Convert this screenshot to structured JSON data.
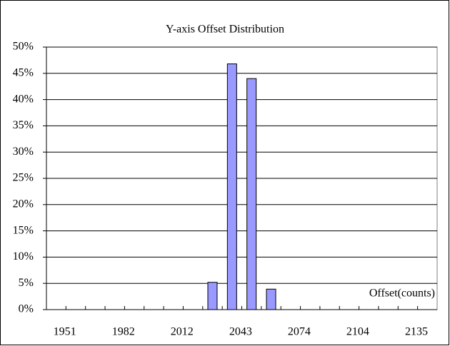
{
  "chart_data": {
    "type": "bar",
    "title": "Y-axis Offset Distribution",
    "x_label": "Offset(counts)",
    "categories": [
      "1951",
      null,
      null,
      "1982",
      null,
      null,
      "2012",
      null,
      null,
      "2043",
      null,
      null,
      "2074",
      null,
      null,
      "2104",
      null,
      null,
      "2135",
      null
    ],
    "values": [
      0,
      0,
      0,
      0,
      0,
      0,
      0,
      0,
      5.2,
      46.8,
      44,
      3.9,
      0,
      0,
      0,
      0,
      0,
      0,
      0,
      0
    ],
    "color": "#9999ff",
    "ylim": [
      0,
      50
    ],
    "yticks": [
      {
        "value": 0,
        "label": "0%"
      },
      {
        "value": 5,
        "label": "5%"
      },
      {
        "value": 10,
        "label": "10%"
      },
      {
        "value": 15,
        "label": "15%"
      },
      {
        "value": 20,
        "label": "20%"
      },
      {
        "value": 25,
        "label": "25%"
      },
      {
        "value": 30,
        "label": "30%"
      },
      {
        "value": 35,
        "label": "35%"
      },
      {
        "value": 40,
        "label": "40%"
      },
      {
        "value": 45,
        "label": "45%"
      },
      {
        "value": 50,
        "label": "50%"
      }
    ],
    "grid": true
  }
}
